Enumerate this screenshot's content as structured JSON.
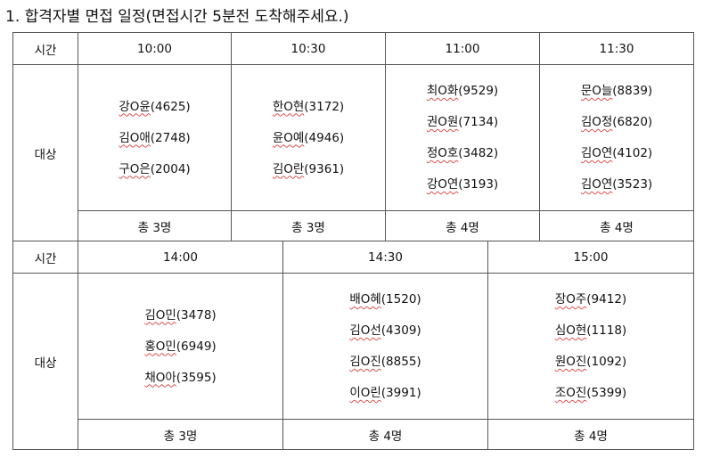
{
  "title": "1. 합격자별 면접 일정(면접시간 5분전 도착해주세요.)",
  "labels": {
    "time": "시간",
    "target": "대상"
  },
  "block1": {
    "slots": [
      {
        "time": "10:00",
        "people": [
          {
            "surname": "강O윤",
            "id": "(4625)"
          },
          {
            "surname": "김O애",
            "id": "(2748)"
          },
          {
            "surname": "구O은",
            "id": "(2004)"
          }
        ],
        "total": "총 3명"
      },
      {
        "time": "10:30",
        "people": [
          {
            "surname": "한O현",
            "id": "(3172)"
          },
          {
            "surname": "윤O예",
            "id": "(4946)"
          },
          {
            "surname": "김O란",
            "id": "(9361)"
          }
        ],
        "total": "총 3명"
      },
      {
        "time": "11:00",
        "people": [
          {
            "surname": "최O화",
            "id": "(9529)"
          },
          {
            "surname": "권O원",
            "id": "(7134)"
          },
          {
            "surname": "정O호",
            "id": "(3482)"
          },
          {
            "surname": "강O연",
            "id": "(3193)"
          }
        ],
        "total": "총 4명"
      },
      {
        "time": "11:30",
        "people": [
          {
            "surname": "문O늘",
            "id": "(8839)"
          },
          {
            "surname": "김O정",
            "id": "(6820)"
          },
          {
            "surname": "김O연",
            "id": "(4102)"
          },
          {
            "surname": "김O연",
            "id": "(3523)"
          }
        ],
        "total": "총 4명"
      }
    ]
  },
  "block2": {
    "slots": [
      {
        "time": "14:00",
        "people": [
          {
            "surname": "김O민",
            "id": "(3478)"
          },
          {
            "surname": "홍O민",
            "id": "(6949)"
          },
          {
            "surname": "채O아",
            "id": "(3595)"
          }
        ],
        "total": "총 3명"
      },
      {
        "time": "14:30",
        "people": [
          {
            "surname": "배O혜",
            "id": "(1520)"
          },
          {
            "surname": "김O선",
            "id": "(4309)"
          },
          {
            "surname": "김O진",
            "id": "(8855)"
          },
          {
            "surname": "이O린",
            "id": "(3991)"
          }
        ],
        "total": "총 4명"
      },
      {
        "time": "15:00",
        "people": [
          {
            "surname": "장O주",
            "id": "(9412)"
          },
          {
            "surname": "심O현",
            "id": "(1118)"
          },
          {
            "surname": "원O진",
            "id": "(1092)"
          },
          {
            "surname": "조O진",
            "id": "(5399)"
          }
        ],
        "total": "총 4명"
      }
    ]
  },
  "colors": {
    "border": "#555555",
    "spellcheck_underline": "#d9534f"
  }
}
